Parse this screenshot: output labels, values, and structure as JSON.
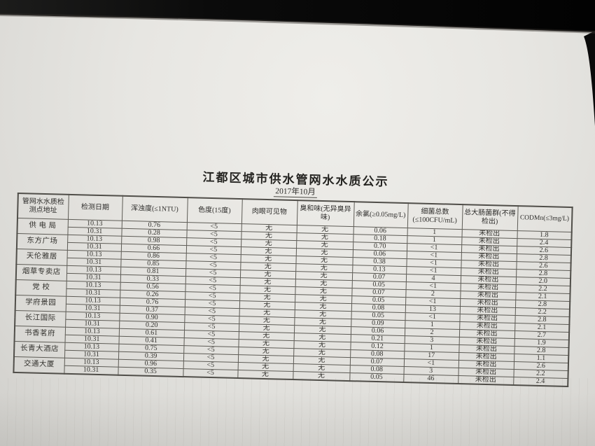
{
  "photo": {
    "background_color": "#070707",
    "paper_color": "#e7e6e2"
  },
  "document": {
    "title": "江都区城市供水管网水水质公示",
    "subtitle": "2017年10月",
    "table": {
      "headers": [
        "管网水水质检测点地址",
        "检测日期",
        "浑浊度(≤1NTU)",
        "色度(15度)",
        "肉眼可见物",
        "臭和味(无异臭异味)",
        "余氯(≥0.05mg/L)",
        "细菌总数(≤100CFU/mL)",
        "总大肠菌群(不得检出)",
        "CODMn(≤3mg/L)"
      ],
      "groups": [
        {
          "location": "供 电 局",
          "rows": [
            [
              "10.13",
              "0.76",
              "<5",
              "无",
              "无",
              "0.06",
              "1",
              "未检出",
              "1.8"
            ],
            [
              "10.31",
              "0.28",
              "<5",
              "无",
              "无",
              "0.18",
              "1",
              "未检出",
              "2.4"
            ]
          ]
        },
        {
          "location": "东方广场",
          "rows": [
            [
              "10.13",
              "0.98",
              "<5",
              "无",
              "无",
              "0.70",
              "<1",
              "未检出",
              "2.6"
            ],
            [
              "10.31",
              "0.66",
              "<5",
              "无",
              "无",
              "0.06",
              "<1",
              "未检出",
              "2.8"
            ]
          ]
        },
        {
          "location": "天伦雅居",
          "rows": [
            [
              "10.13",
              "0.86",
              "<5",
              "无",
              "无",
              "0.38",
              "<1",
              "未检出",
              "2.6"
            ],
            [
              "10.31",
              "0.85",
              "<5",
              "无",
              "无",
              "0.13",
              "<1",
              "未检出",
              "2.8"
            ]
          ]
        },
        {
          "location": "烟草专卖店",
          "rows": [
            [
              "10.13",
              "0.81",
              "<5",
              "无",
              "无",
              "0.07",
              "4",
              "未检出",
              "2.0"
            ],
            [
              "10.31",
              "0.33",
              "<5",
              "无",
              "无",
              "0.05",
              "<1",
              "未检出",
              "2.2"
            ]
          ]
        },
        {
          "location": "党  校",
          "rows": [
            [
              "10.13",
              "0.56",
              "<5",
              "无",
              "无",
              "0.07",
              "2",
              "未检出",
              "2.1"
            ],
            [
              "10.31",
              "0.26",
              "<5",
              "无",
              "无",
              "0.05",
              "<1",
              "未检出",
              "2.8"
            ]
          ]
        },
        {
          "location": "学府景园",
          "rows": [
            [
              "10.13",
              "0.76",
              "<5",
              "无",
              "无",
              "0.08",
              "13",
              "未检出",
              "2.2"
            ],
            [
              "10.31",
              "0.37",
              "<5",
              "无",
              "无",
              "0.05",
              "<1",
              "未检出",
              "2.8"
            ]
          ]
        },
        {
          "location": "长江国际",
          "rows": [
            [
              "10.13",
              "0.90",
              "<5",
              "无",
              "无",
              "0.09",
              "1",
              "未检出",
              "2.1"
            ],
            [
              "10.31",
              "0.20",
              "<5",
              "无",
              "无",
              "0.06",
              "2",
              "未检出",
              "2.7"
            ]
          ]
        },
        {
          "location": "书香茗府",
          "rows": [
            [
              "10.13",
              "0.61",
              "<5",
              "无",
              "无",
              "0.21",
              "3",
              "未检出",
              "1.9"
            ],
            [
              "10.31",
              "0.41",
              "<5",
              "无",
              "无",
              "0.12",
              "1",
              "未检出",
              "2.8"
            ]
          ]
        },
        {
          "location": "长青大酒店",
          "rows": [
            [
              "10.13",
              "0.75",
              "<5",
              "无",
              "无",
              "0.08",
              "17",
              "未检出",
              "1.1"
            ],
            [
              "10.31",
              "0.39",
              "<5",
              "无",
              "无",
              "0.07",
              "<1",
              "未检出",
              "2.6"
            ]
          ]
        },
        {
          "location": "交通大厦",
          "rows": [
            [
              "10.13",
              "0.96",
              "<5",
              "无",
              "无",
              "0.08",
              "3",
              "未检出",
              "2.2"
            ],
            [
              "10.31",
              "0.35",
              "<5",
              "无",
              "无",
              "0.05",
              "46",
              "未检出",
              "2.4"
            ]
          ]
        }
      ]
    }
  }
}
